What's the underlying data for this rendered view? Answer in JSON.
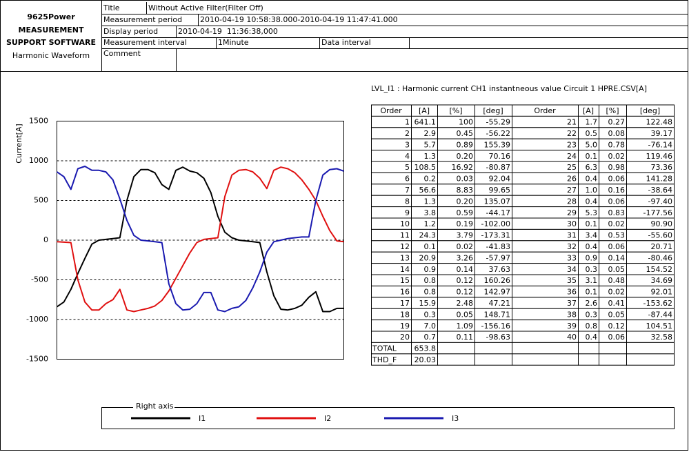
{
  "header": {
    "brand": [
      "9625Power",
      "MEASUREMENT",
      "SUPPORT SOFTWARE"
    ],
    "view": "Harmonic Waveform",
    "title_label": "Title",
    "title_value": "Without Active Filter(Filter Off)",
    "measurement_period_label": "Measurement period",
    "measurement_period_value": "2010-04-19 10:58:38.000-2010-04-19 11:47:41.000",
    "display_period_label": "Display period",
    "display_period_value": "2010-04-19  11:36:38,000",
    "measurement_interval_label": "Measurement interval",
    "measurement_interval_value": "1Minute",
    "data_interval_label": "Data interval",
    "comment_label": "Comment"
  },
  "chart_data": {
    "type": "line",
    "y_label": "Current[A]",
    "ylim": [
      -1500,
      1500
    ],
    "yticks": [
      -1500,
      -1000,
      -500,
      0,
      500,
      1000,
      1500
    ],
    "grid": true,
    "legend_title": "Right axis",
    "series": [
      {
        "name": "I1",
        "color": "#000000",
        "values": [
          -840,
          -780,
          -620,
          -420,
          -230,
          -50,
          0,
          10,
          20,
          30,
          500,
          800,
          890,
          890,
          850,
          700,
          640,
          880,
          920,
          870,
          850,
          780,
          600,
          300,
          100,
          30,
          0,
          -10,
          -20,
          -30,
          -400,
          -700,
          -870,
          -880,
          -860,
          -820,
          -720,
          -650,
          -900,
          -900,
          -860,
          -860
        ]
      },
      {
        "name": "I2",
        "color": "#e01010",
        "values": [
          -20,
          -25,
          -30,
          -500,
          -780,
          -880,
          -880,
          -800,
          -750,
          -620,
          -880,
          -900,
          -880,
          -860,
          -830,
          -760,
          -640,
          -480,
          -320,
          -160,
          -30,
          10,
          20,
          30,
          550,
          820,
          880,
          890,
          860,
          780,
          650,
          880,
          920,
          900,
          850,
          760,
          640,
          500,
          300,
          120,
          -10,
          -20
        ]
      },
      {
        "name": "I3",
        "color": "#1a1ab0",
        "values": [
          860,
          800,
          640,
          900,
          930,
          880,
          880,
          860,
          760,
          520,
          250,
          60,
          0,
          -10,
          -20,
          -30,
          -550,
          -800,
          -880,
          -870,
          -800,
          -660,
          -660,
          -880,
          -900,
          -860,
          -840,
          -760,
          -600,
          -400,
          -150,
          -20,
          0,
          20,
          30,
          40,
          40,
          500,
          820,
          890,
          900,
          870
        ]
      }
    ]
  },
  "table": {
    "caption": "LVL_I1 : Harmonic current CH1 instantneous value Circuit 1 HPRE.CSV[A]",
    "header": [
      "Order",
      "[A]",
      "[%]",
      "[deg]",
      "Order",
      "[A]",
      "[%]",
      "[deg]"
    ],
    "rows": [
      [
        "1",
        "641.1",
        "100",
        "-55.29",
        "21",
        "1.7",
        "0.27",
        "122.48"
      ],
      [
        "2",
        "2.9",
        "0.45",
        "-56.22",
        "22",
        "0.5",
        "0.08",
        "39.17"
      ],
      [
        "3",
        "5.7",
        "0.89",
        "155.39",
        "23",
        "5.0",
        "0.78",
        "-76.14"
      ],
      [
        "4",
        "1.3",
        "0.20",
        "70.16",
        "24",
        "0.1",
        "0.02",
        "119.46"
      ],
      [
        "5",
        "108.5",
        "16.92",
        "-80.87",
        "25",
        "6.3",
        "0.98",
        "73.36"
      ],
      [
        "6",
        "0.2",
        "0.03",
        "92.04",
        "26",
        "0.4",
        "0.06",
        "141.28"
      ],
      [
        "7",
        "56.6",
        "8.83",
        "99.65",
        "27",
        "1.0",
        "0.16",
        "-38.64"
      ],
      [
        "8",
        "1.3",
        "0.20",
        "135.07",
        "28",
        "0.4",
        "0.06",
        "-97.40"
      ],
      [
        "9",
        "3.8",
        "0.59",
        "-44.17",
        "29",
        "5.3",
        "0.83",
        "-177.56"
      ],
      [
        "10",
        "1.2",
        "0.19",
        "-102.00",
        "30",
        "0.1",
        "0.02",
        "90.90"
      ],
      [
        "11",
        "24.3",
        "3.79",
        "-173.31",
        "31",
        "3.4",
        "0.53",
        "-55.60"
      ],
      [
        "12",
        "0.1",
        "0.02",
        "-41.83",
        "32",
        "0.4",
        "0.06",
        "20.71"
      ],
      [
        "13",
        "20.9",
        "3.26",
        "-57.97",
        "33",
        "0.9",
        "0.14",
        "-80.46"
      ],
      [
        "14",
        "0.9",
        "0.14",
        "37.63",
        "34",
        "0.3",
        "0.05",
        "154.52"
      ],
      [
        "15",
        "0.8",
        "0.12",
        "160.26",
        "35",
        "3.1",
        "0.48",
        "34.69"
      ],
      [
        "16",
        "0.8",
        "0.12",
        "142.97",
        "36",
        "0.1",
        "0.02",
        "92.01"
      ],
      [
        "17",
        "15.9",
        "2.48",
        "47.21",
        "37",
        "2.6",
        "0.41",
        "-153.62"
      ],
      [
        "18",
        "0.3",
        "0.05",
        "148.71",
        "38",
        "0.3",
        "0.05",
        "-87.44"
      ],
      [
        "19",
        "7.0",
        "1.09",
        "-156.16",
        "39",
        "0.8",
        "0.12",
        "104.51"
      ],
      [
        "20",
        "0.7",
        "0.11",
        "-98.63",
        "40",
        "0.4",
        "0.06",
        "32.58"
      ]
    ],
    "summary": [
      [
        "TOTAL",
        "653.8"
      ],
      [
        "THD_F",
        "20.03"
      ]
    ]
  }
}
